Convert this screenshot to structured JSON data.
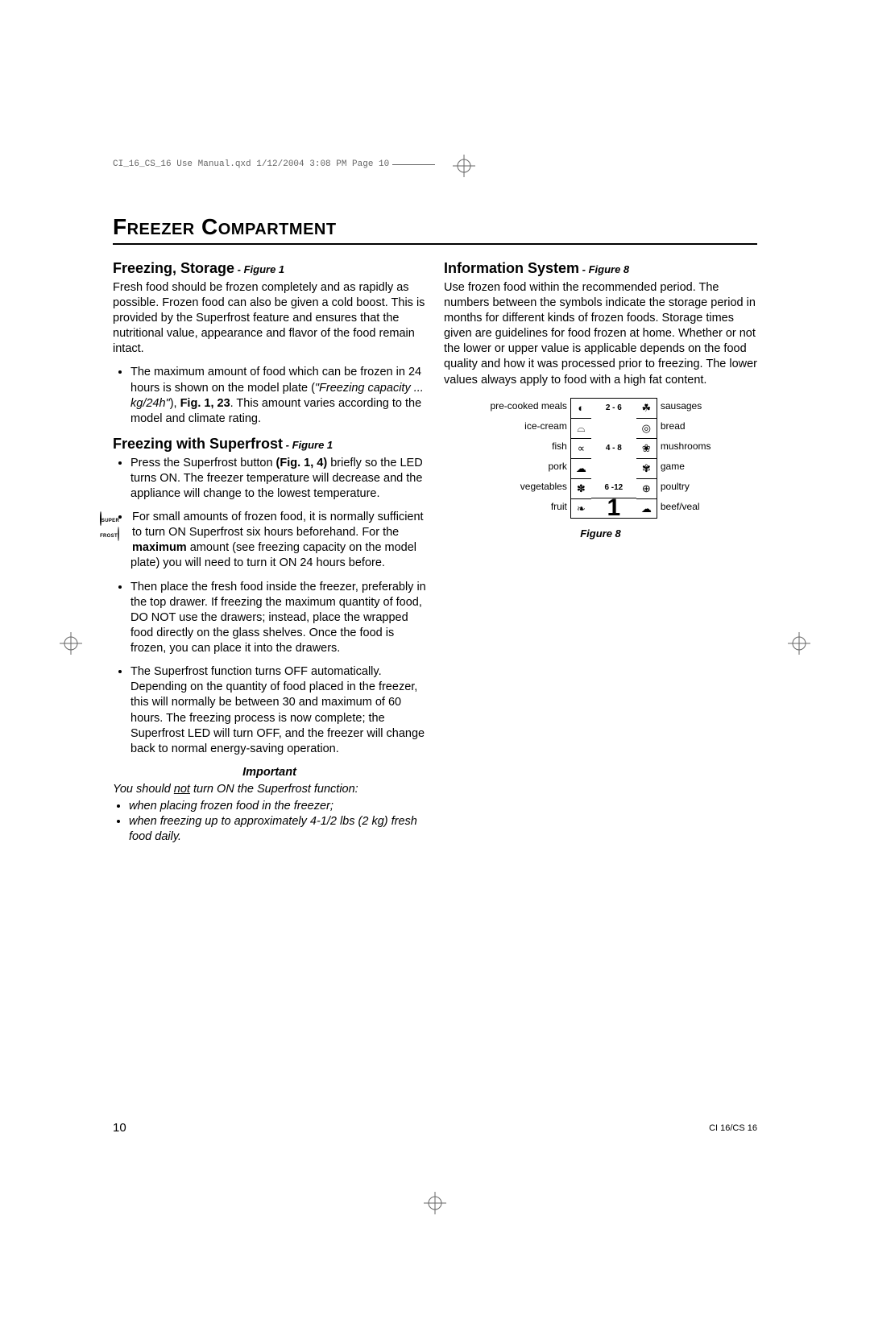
{
  "print_header": "CI_16_CS_16 Use Manual.qxd  1/12/2004  3:08 PM  Page 10",
  "title": "Freezer Compartment",
  "left": {
    "sec1_title": "Freezing, Storage",
    "sec1_fig": " - Figure 1",
    "sec1_para": "Fresh food should be frozen completely and as rapidly as possible. Frozen food can also be given a cold boost. This is provided by the Superfrost feature and ensures that the nutritional value, appearance and flavor of the food remain intact.",
    "sec1_b1_a": "The maximum amount of food which can be frozen in 24 hours is shown on the model plate (",
    "sec1_b1_i": "\"Freezing capacity ... kg/24h\"",
    "sec1_b1_b": "), ",
    "sec1_b1_ref": "Fig. 1, 23",
    "sec1_b1_c": ". This amount varies according to the model and climate rating.",
    "sec2_title": "Freezing with Superfrost",
    "sec2_fig": " - Figure 1",
    "sec2_b1_a": "Press the Superfrost button ",
    "sec2_b1_ref": "(Fig. 1, 4)",
    "sec2_b1_b": " briefly so the LED turns ON. The freezer temperature will decrease and the appliance will change to the lowest temperature.",
    "sf_label": "SUPER FROST",
    "sec2_b2_a": "For small amounts of frozen food, it is normally sufficient to turn ON Superfrost six hours beforehand. For the ",
    "sec2_b2_bold": "maximum",
    "sec2_b2_b": " amount (see freezing capacity on the model plate) you will need to turn it ON 24 hours before.",
    "sec2_b3": "Then place the fresh food inside the freezer, preferably in the top drawer. If freezing the maximum quantity of food, DO NOT use the drawers; instead, place the wrapped food directly on the glass shelves. Once the food is frozen, you can place it into the drawers.",
    "sec2_b4": "The Superfrost function turns OFF automatically. Depending on the quantity of food placed in the freezer, this will normally be between 30 and maximum of 60 hours. The freezing process is now complete; the Superfrost LED will turn OFF, and the freezer will change back to normal energy-saving operation.",
    "imp_head": "Important",
    "imp_line_a": "You should ",
    "imp_line_not": "not",
    "imp_line_b": " turn ON the Superfrost function:",
    "imp_i1": "when placing frozen food in the freezer;",
    "imp_i2": "when freezing up to approximately 4-1/2 lbs (2 kg) fresh food daily."
  },
  "right": {
    "sec_title": "Information System",
    "sec_fig": " - Figure 8",
    "para": "Use frozen food within the recommended period. The numbers between the symbols indicate the storage period in months for different kinds of frozen foods. Storage times given are guidelines for food frozen at home. Whether or not the lower or upper value is applicable depends on the food quality and how it was processed prior to freezing. The lower values always apply to food with a high fat content.",
    "fig8": {
      "rows": [
        {
          "l": "pre-cooked meals",
          "il": "◐",
          "mid": "2 - 6",
          "ir": "☘",
          "r": "sausages"
        },
        {
          "l": "ice-cream",
          "il": "⌓",
          "mid": "",
          "ir": "◎",
          "r": "bread"
        },
        {
          "l": "fish",
          "il": "∝",
          "mid": "4 - 8",
          "ir": "❀",
          "r": "mushrooms"
        },
        {
          "l": "pork",
          "il": "☁",
          "mid": "",
          "ir": "✾",
          "r": "game"
        },
        {
          "l": "vegetables",
          "il": "✽",
          "mid": "6 -12",
          "ir": "⊕",
          "r": "poultry"
        },
        {
          "l": "fruit",
          "il": "❧",
          "mid": "",
          "ir": "☁",
          "r": "beef/veal"
        }
      ],
      "panel": "1",
      "caption": "Figure 8"
    }
  },
  "page_number": "10",
  "model": "CI 16/CS 16"
}
